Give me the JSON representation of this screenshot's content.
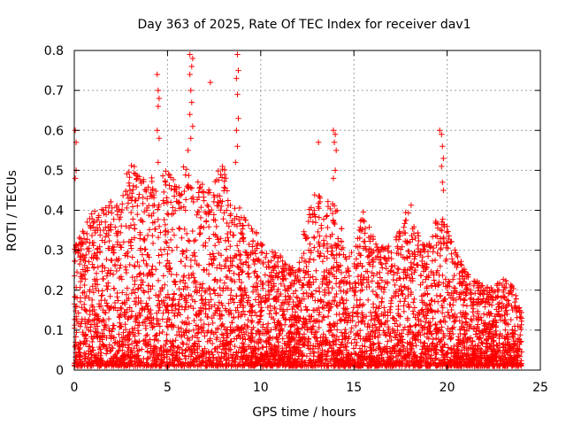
{
  "chart_data": {
    "type": "scatter",
    "title": "Day 363 of 2025, Rate Of TEC Index for receiver dav1",
    "xlabel": "GPS time / hours",
    "ylabel": "ROTI / TECUs",
    "xlim": [
      0,
      25
    ],
    "ylim": [
      0,
      0.8
    ],
    "xticks": [
      0,
      5,
      10,
      15,
      20,
      25
    ],
    "yticks": [
      0,
      0.1,
      0.2,
      0.3,
      0.4,
      0.5,
      0.6,
      0.7,
      0.8
    ],
    "grid": true,
    "marker": "plus",
    "color": "#ff0000",
    "envelope": {
      "x": [
        0,
        0.5,
        1,
        1.5,
        2,
        2.5,
        3,
        3.5,
        4,
        4.5,
        5,
        5.5,
        6,
        6.5,
        7,
        7.5,
        8,
        8.5,
        9,
        9.5,
        10,
        10.5,
        11,
        11.5,
        12,
        12.5,
        13,
        13.5,
        14,
        14.5,
        15,
        15.5,
        16,
        16.5,
        17,
        17.5,
        18,
        18.5,
        19,
        19.5,
        20,
        20.5,
        21,
        21.5,
        22,
        22.5,
        23,
        23.5,
        24
      ],
      "y": [
        0.3,
        0.35,
        0.38,
        0.4,
        0.42,
        0.45,
        0.5,
        0.48,
        0.47,
        0.5,
        0.5,
        0.45,
        0.5,
        0.45,
        0.45,
        0.48,
        0.5,
        0.42,
        0.38,
        0.35,
        0.32,
        0.3,
        0.28,
        0.25,
        0.25,
        0.38,
        0.45,
        0.4,
        0.42,
        0.3,
        0.28,
        0.4,
        0.32,
        0.3,
        0.3,
        0.35,
        0.42,
        0.35,
        0.3,
        0.4,
        0.35,
        0.28,
        0.25,
        0.22,
        0.2,
        0.2,
        0.22,
        0.2,
        0.15
      ]
    },
    "outliers": [
      {
        "x": 0.05,
        "y": 0.6
      },
      {
        "x": 0.1,
        "y": 0.57
      },
      {
        "x": 0.1,
        "y": 0.5
      },
      {
        "x": 0.05,
        "y": 0.48
      },
      {
        "x": 4.45,
        "y": 0.74
      },
      {
        "x": 4.5,
        "y": 0.7
      },
      {
        "x": 4.55,
        "y": 0.68
      },
      {
        "x": 4.5,
        "y": 0.66
      },
      {
        "x": 4.45,
        "y": 0.6
      },
      {
        "x": 4.55,
        "y": 0.58
      },
      {
        "x": 4.5,
        "y": 0.52
      },
      {
        "x": 6.2,
        "y": 0.79
      },
      {
        "x": 6.35,
        "y": 0.78
      },
      {
        "x": 6.3,
        "y": 0.76
      },
      {
        "x": 6.2,
        "y": 0.74
      },
      {
        "x": 6.25,
        "y": 0.7
      },
      {
        "x": 6.3,
        "y": 0.67
      },
      {
        "x": 6.2,
        "y": 0.64
      },
      {
        "x": 6.35,
        "y": 0.61
      },
      {
        "x": 6.25,
        "y": 0.58
      },
      {
        "x": 6.1,
        "y": 0.55
      },
      {
        "x": 7.3,
        "y": 0.72
      },
      {
        "x": 8.75,
        "y": 0.79
      },
      {
        "x": 8.8,
        "y": 0.75
      },
      {
        "x": 8.7,
        "y": 0.73
      },
      {
        "x": 8.75,
        "y": 0.69
      },
      {
        "x": 8.8,
        "y": 0.63
      },
      {
        "x": 8.7,
        "y": 0.6
      },
      {
        "x": 8.75,
        "y": 0.56
      },
      {
        "x": 8.65,
        "y": 0.52
      },
      {
        "x": 13.1,
        "y": 0.57
      },
      {
        "x": 13.9,
        "y": 0.6
      },
      {
        "x": 14.0,
        "y": 0.59
      },
      {
        "x": 13.95,
        "y": 0.57
      },
      {
        "x": 14.05,
        "y": 0.55
      },
      {
        "x": 14.0,
        "y": 0.5
      },
      {
        "x": 13.9,
        "y": 0.48
      },
      {
        "x": 19.6,
        "y": 0.6
      },
      {
        "x": 19.7,
        "y": 0.59
      },
      {
        "x": 19.75,
        "y": 0.56
      },
      {
        "x": 19.8,
        "y": 0.53
      },
      {
        "x": 19.7,
        "y": 0.51
      },
      {
        "x": 19.75,
        "y": 0.47
      },
      {
        "x": 19.8,
        "y": 0.45
      }
    ]
  }
}
